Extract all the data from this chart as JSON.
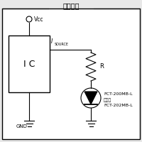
{
  "title": "参考回路",
  "ic_label": "I C",
  "vcc_label": "Vcc",
  "isource_label": "I",
  "isource_sub": "SOURCE",
  "r_label": "R",
  "gnd_label": "GND",
  "fct_label1": "FCT-200MB-L",
  "fct_label2": "または",
  "fct_label3": "FCT-202MB-L",
  "bg_color": "#e8e8e8",
  "inner_bg": "#ffffff",
  "line_color": "#000000"
}
